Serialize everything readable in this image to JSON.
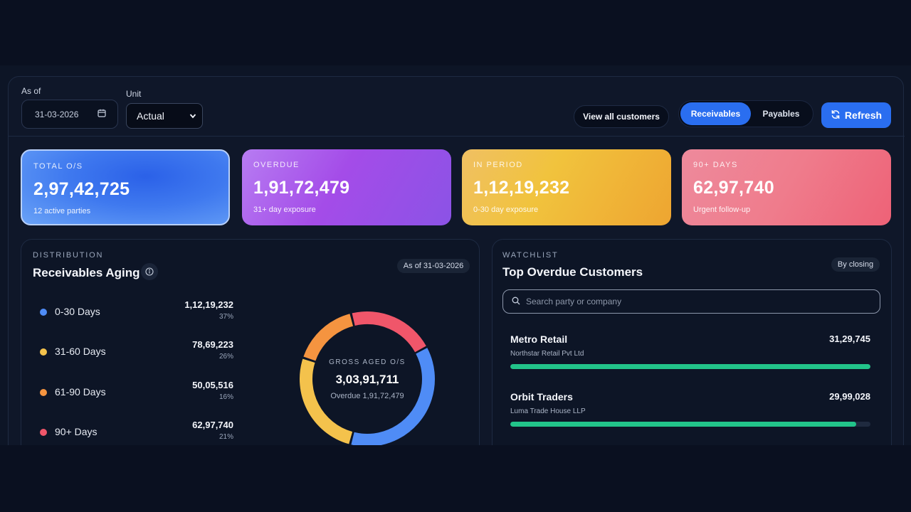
{
  "toolbar": {
    "as_of_label": "As of",
    "as_of_value": "31-03-2026",
    "unit_label": "Unit",
    "unit_value": "Actual",
    "view_all": "View all customers",
    "segments": [
      {
        "label": "Receivables",
        "active": true
      },
      {
        "label": "Payables",
        "active": false
      }
    ],
    "refresh": "Refresh"
  },
  "kpis": [
    {
      "label": "TOTAL O/S",
      "value": "2,97,42,725",
      "sub": "12 active parties"
    },
    {
      "label": "OVERDUE",
      "value": "1,91,72,479",
      "sub": "31+ day exposure"
    },
    {
      "label": "IN PERIOD",
      "value": "1,12,19,232",
      "sub": "0-30 day exposure"
    },
    {
      "label": "90+ DAYS",
      "value": "62,97,740",
      "sub": "Urgent follow-up"
    }
  ],
  "aging": {
    "eyebrow": "DISTRIBUTION",
    "title": "Receivables Aging",
    "as_of_pill": "As of 31-03-2026",
    "buckets": [
      {
        "name": "0-30 Days",
        "amount": "1,12,19,232",
        "pct": "37%",
        "share": 37,
        "color": "#4f8cf6"
      },
      {
        "name": "31-60 Days",
        "amount": "78,69,223",
        "pct": "26%",
        "share": 26,
        "color": "#f4c24c"
      },
      {
        "name": "61-90 Days",
        "amount": "50,05,516",
        "pct": "16%",
        "share": 16,
        "color": "#f59440"
      },
      {
        "name": "90+ Days",
        "amount": "62,97,740",
        "pct": "21%",
        "share": 21,
        "color": "#f0566a"
      }
    ],
    "center_label": "GROSS AGED O/S",
    "center_value": "3,03,91,711",
    "center_sub": "Overdue 1,91,72,479"
  },
  "watchlist": {
    "eyebrow": "WATCHLIST",
    "title": "Top Overdue Customers",
    "sort_pill": "By closing",
    "search_placeholder": "Search party or company",
    "customers": [
      {
        "name": "Metro Retail",
        "company": "Northstar Retail Pvt Ltd",
        "amount": "31,29,745",
        "progress": 100
      },
      {
        "name": "Orbit Traders",
        "company": "Luma Trade House LLP",
        "amount": "29,99,028",
        "progress": 96
      }
    ]
  },
  "icons": {
    "date": "calendar-icon",
    "refresh": "refresh-icon",
    "info": "info-icon",
    "search": "search-icon",
    "select": "chevron-down-icon"
  }
}
